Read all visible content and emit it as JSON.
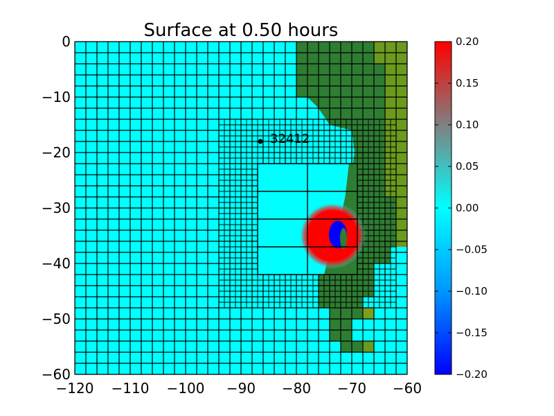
{
  "chart_data": {
    "type": "heatmap",
    "title": "Surface at 0.50 hours",
    "xlabel": "",
    "ylabel": "",
    "xlim": [
      -120,
      -60
    ],
    "ylim": [
      -60,
      0
    ],
    "x_ticks": [
      -120,
      -110,
      -100,
      -90,
      -80,
      -70,
      -60
    ],
    "y_ticks": [
      0,
      -10,
      -20,
      -30,
      -40,
      -50,
      -60
    ],
    "x_tick_labels": [
      "−120",
      "−110",
      "−100",
      "−90",
      "−80",
      "−70",
      "−60"
    ],
    "y_tick_labels": [
      "0",
      "−10",
      "−20",
      "−30",
      "−40",
      "−50",
      "−60"
    ],
    "colorbar": {
      "range": [
        -0.2,
        0.2
      ],
      "ticks": [
        0.2,
        0.15,
        0.1,
        0.05,
        0.0,
        -0.05,
        -0.1,
        -0.15,
        -0.2
      ],
      "tick_labels": [
        "0.20",
        "0.15",
        "0.10",
        "0.05",
        "0.00",
        "−0.05",
        "−0.10",
        "−0.15",
        "−0.20"
      ],
      "colors": [
        "#0000ff",
        "#0096ff",
        "#00ffff",
        "#808080",
        "#ff0000"
      ]
    },
    "colors": {
      "water": "#00ffff",
      "land_dark": "#2e7d32",
      "land_olive": "#6b9a1e",
      "land_yellow": "#7f9f1a",
      "wave_high": "#ff0000",
      "wave_low": "#0000ff"
    },
    "gauge": {
      "label": "32412",
      "x": -86.5,
      "y": -18.0
    },
    "grid_levels": [
      {
        "level": 1,
        "xlim": [
          -120,
          -60
        ],
        "ylim": [
          -60,
          0
        ],
        "cell": 2
      },
      {
        "level": 2,
        "xlim": [
          -94,
          -62
        ],
        "ylim": [
          -48,
          -14
        ],
        "cell": 1
      },
      {
        "level": 3,
        "xlim": [
          -87,
          -69
        ],
        "ylim": [
          -42,
          -22
        ],
        "cell": 5
      }
    ],
    "wave_disturbance": {
      "center_x": -73,
      "center_y": -35,
      "max": 0.2,
      "min": -0.2
    }
  }
}
